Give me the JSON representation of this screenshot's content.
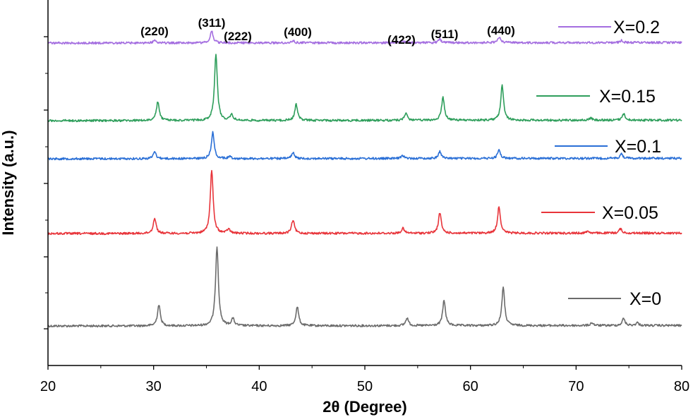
{
  "chart_data": {
    "type": "line",
    "title": "",
    "xlabel": "2θ (Degree)",
    "ylabel": "Intensity (a.u.)",
    "xlim": [
      20,
      80
    ],
    "xticks": [
      20,
      30,
      40,
      50,
      60,
      70,
      80
    ],
    "grid": false,
    "legend_placement": "right, beside each trace",
    "peak_labels": [
      {
        "text": "(220)",
        "x": 30.1
      },
      {
        "text": "(311)",
        "x": 35.5
      },
      {
        "text": "(222)",
        "x": 37.2
      },
      {
        "text": "(400)",
        "x": 43.2
      },
      {
        "text": "(422)",
        "x": 53.6
      },
      {
        "text": "(511)",
        "x": 57.2
      },
      {
        "text": "(440)",
        "x": 62.8
      }
    ],
    "series": [
      {
        "name": "X=0",
        "color": "#6b6b6b",
        "baseline": 462,
        "peaks": [
          [
            30.5,
            30
          ],
          [
            36.0,
            113
          ],
          [
            37.5,
            10
          ],
          [
            43.6,
            27
          ],
          [
            54.0,
            11
          ],
          [
            57.5,
            36
          ],
          [
            63.1,
            54
          ],
          [
            71.5,
            4
          ],
          [
            74.5,
            10
          ],
          [
            75.8,
            4
          ]
        ]
      },
      {
        "name": "X=0.05",
        "color": "#e8343a",
        "baseline": 331,
        "peaks": [
          [
            30.1,
            22
          ],
          [
            35.5,
            90
          ],
          [
            37.1,
            6
          ],
          [
            43.2,
            19
          ],
          [
            53.6,
            7
          ],
          [
            57.1,
            29
          ],
          [
            62.7,
            38
          ],
          [
            71.1,
            3
          ],
          [
            74.2,
            6
          ]
        ]
      },
      {
        "name": "X=0.1",
        "color": "#2a6fd6",
        "baseline": 225,
        "peaks": [
          [
            30.1,
            10
          ],
          [
            35.6,
            37
          ],
          [
            37.2,
            3
          ],
          [
            43.2,
            8
          ],
          [
            53.6,
            4
          ],
          [
            57.1,
            10
          ],
          [
            62.7,
            12
          ],
          [
            74.3,
            6
          ]
        ]
      },
      {
        "name": "X=0.15",
        "color": "#2e9e5b",
        "baseline": 171,
        "peaks": [
          [
            30.4,
            27
          ],
          [
            35.9,
            95
          ],
          [
            37.4,
            8
          ],
          [
            43.5,
            23
          ],
          [
            53.9,
            10
          ],
          [
            57.4,
            33
          ],
          [
            63.0,
            49
          ],
          [
            71.4,
            3
          ],
          [
            74.5,
            9
          ]
        ]
      },
      {
        "name": "X=0.2",
        "color": "#a46ee0",
        "baseline": 61,
        "peaks": [
          [
            30.1,
            4
          ],
          [
            35.5,
            17
          ],
          [
            43.2,
            3
          ],
          [
            53.6,
            2
          ],
          [
            57.1,
            5
          ],
          [
            62.7,
            8
          ],
          [
            74.3,
            3
          ]
        ]
      }
    ]
  }
}
